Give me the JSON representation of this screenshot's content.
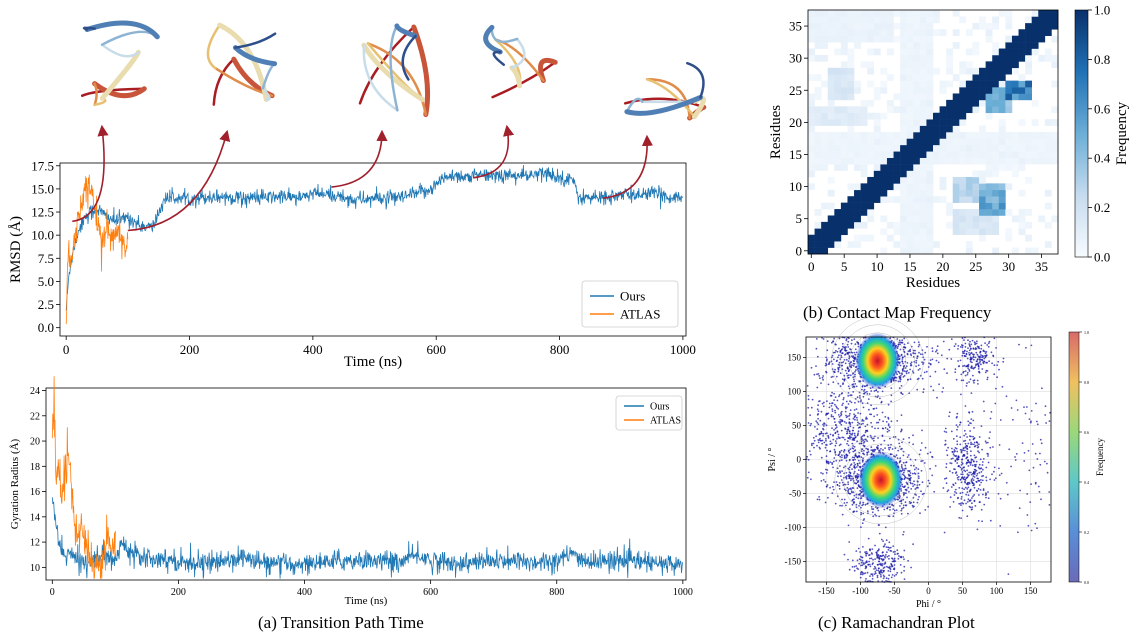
{
  "captions": {
    "a": "(a) Transition Path Time",
    "b": "(b) Contact Map Frequency",
    "c": "(c) Ramachandran Plot"
  },
  "colors": {
    "ours": "#1f77b4",
    "atlas": "#ff7f0e",
    "arrow": "#a0202c"
  },
  "structures": [
    {
      "t_ns": 10,
      "rmsd": 11.5
    },
    {
      "t_ns": 100,
      "rmsd": 10.5
    },
    {
      "t_ns": 430,
      "rmsd": 15.2
    },
    {
      "t_ns": 660,
      "rmsd": 16.2
    },
    {
      "t_ns": 870,
      "rmsd": 14.0
    }
  ],
  "chart_data": [
    {
      "id": "rmsd",
      "type": "line",
      "xlabel": "Time (ns)",
      "ylabel": "RMSD (Å)",
      "xlim": [
        -10,
        1005
      ],
      "ylim": [
        -0.9,
        17.8
      ],
      "xticks": [
        0,
        200,
        400,
        600,
        800,
        1000
      ],
      "yticks": [
        0.0,
        2.5,
        5.0,
        7.5,
        10.0,
        12.5,
        15.0,
        17.5
      ],
      "legend_position": "bottom-right",
      "series": [
        {
          "name": "Ours",
          "color": "#1f77b4",
          "x": [
            0,
            5,
            10,
            20,
            30,
            40,
            50,
            60,
            80,
            100,
            120,
            140,
            160,
            200,
            250,
            300,
            350,
            380,
            400,
            440,
            470,
            500,
            540,
            570,
            590,
            620,
            650,
            700,
            750,
            780,
            800,
            820,
            830,
            850,
            900,
            950,
            1000
          ],
          "y": [
            2.0,
            6.0,
            8.0,
            10.5,
            12.0,
            12.5,
            12.8,
            12.3,
            11.5,
            12.0,
            11.0,
            10.8,
            14.0,
            14.0,
            14.2,
            14.0,
            14.2,
            14.0,
            14.5,
            14.2,
            13.8,
            14.0,
            14.0,
            14.5,
            15.0,
            16.5,
            16.3,
            16.5,
            16.4,
            16.7,
            16.2,
            16.2,
            14.2,
            14.0,
            14.3,
            14.5,
            14.0
          ],
          "noise": 0.45
        },
        {
          "name": "ATLAS",
          "color": "#ff7f0e",
          "x": [
            0,
            3,
            6,
            10,
            15,
            20,
            25,
            30,
            35,
            40,
            45,
            50,
            55,
            60,
            65,
            70,
            75,
            80,
            85,
            90,
            95,
            100
          ],
          "y": [
            0.5,
            8.5,
            7.0,
            8.0,
            10.5,
            12.0,
            13.5,
            15.0,
            15.5,
            14.5,
            13.5,
            12.0,
            10.5,
            9.0,
            11.0,
            10.0,
            9.5,
            10.0,
            11.0,
            9.0,
            8.0,
            9.0
          ],
          "noise": 0.9
        }
      ]
    },
    {
      "id": "gyration",
      "type": "line",
      "xlabel": "Time (ns)",
      "ylabel": "Gyration Radius (Å)",
      "xlim": [
        -10,
        1005
      ],
      "ylim": [
        9.0,
        24.2
      ],
      "xticks": [
        0,
        200,
        400,
        600,
        800,
        1000
      ],
      "yticks": [
        10,
        12,
        14,
        16,
        18,
        20,
        22,
        24
      ],
      "legend_position": "top-right",
      "series": [
        {
          "name": "Ours",
          "color": "#1f77b4",
          "x": [
            0,
            5,
            10,
            20,
            30,
            40,
            60,
            80,
            100,
            110,
            120,
            140,
            160,
            200,
            250,
            300,
            350,
            400,
            450,
            500,
            550,
            580,
            600,
            650,
            700,
            750,
            800,
            830,
            850,
            900,
            950,
            1000
          ],
          "y": [
            16.0,
            13.5,
            12.0,
            11.0,
            11.0,
            10.5,
            10.5,
            11.0,
            10.5,
            12.0,
            11.5,
            11.0,
            10.8,
            10.5,
            10.3,
            10.8,
            10.2,
            10.3,
            10.5,
            10.6,
            10.4,
            11.0,
            10.5,
            10.3,
            10.5,
            10.4,
            10.6,
            11.0,
            10.4,
            10.6,
            10.3,
            10.2
          ],
          "noise": 0.45
        },
        {
          "name": "ATLAS",
          "color": "#ff7f0e",
          "x": [
            0,
            3,
            6,
            10,
            15,
            20,
            25,
            30,
            35,
            40,
            45,
            50,
            55,
            60,
            65,
            70,
            75,
            80,
            85,
            90,
            95,
            100
          ],
          "y": [
            20.5,
            23.5,
            17.0,
            18.5,
            16.0,
            17.5,
            19.5,
            16.5,
            13.5,
            12.5,
            13.0,
            12.0,
            11.5,
            11.0,
            10.5,
            10.5,
            9.8,
            10.5,
            12.5,
            12.0,
            11.5,
            12.5
          ],
          "noise": 0.9
        }
      ]
    },
    {
      "id": "contact-map",
      "type": "heatmap",
      "xlabel": "Residues",
      "ylabel": "Residues",
      "colorbar_label": "Frequency",
      "n": 38,
      "xticks": [
        0,
        5,
        10,
        15,
        20,
        25,
        30,
        35
      ],
      "yticks": [
        0,
        5,
        10,
        15,
        20,
        25,
        30,
        35
      ],
      "cbar_ticks": [
        "0.0",
        "0.2",
        "0.4",
        "0.6",
        "0.8",
        "1.0"
      ],
      "vmin": 0,
      "vmax": 1,
      "diagonal_band_half_width": 2,
      "blocks": [
        {
          "i": [
            24,
            26
          ],
          "j": [
            30,
            33
          ],
          "v": 0.85
        },
        {
          "i": [
            22,
            25
          ],
          "j": [
            27,
            30
          ],
          "v": 0.55
        },
        {
          "i": [
            6,
            10
          ],
          "j": [
            26,
            29
          ],
          "v": 0.65
        },
        {
          "i": [
            8,
            11
          ],
          "j": [
            22,
            25
          ],
          "v": 0.35
        },
        {
          "i": [
            20,
            22
          ],
          "j": [
            0,
            8
          ],
          "v": 0.15
        },
        {
          "i": [
            3,
            6
          ],
          "j": [
            22,
            28
          ],
          "v": 0.2
        },
        {
          "i": [
            24,
            28
          ],
          "j": [
            3,
            6
          ],
          "v": 0.2
        },
        {
          "i": [
            14,
            18
          ],
          "j": [
            0,
            37
          ],
          "v": 0.06
        },
        {
          "i": [
            0,
            37
          ],
          "j": [
            14,
            18
          ],
          "v": 0.06
        },
        {
          "i": [
            33,
            37
          ],
          "j": [
            0,
            12
          ],
          "v": 0.08
        }
      ]
    },
    {
      "id": "ramachandran",
      "type": "scatter",
      "xlabel": "Phi / °",
      "ylabel": "Psi / °",
      "colorbar_label": "Frequency",
      "xlim": [
        -180,
        180
      ],
      "ylim": [
        -180,
        180
      ],
      "xticks": [
        -150,
        -100,
        -50,
        0,
        50,
        100,
        150
      ],
      "yticks": [
        -150,
        -100,
        -50,
        0,
        50,
        100,
        150
      ],
      "cbar_ticks": [
        "0.0",
        "0.2",
        "0.4",
        "0.6",
        "0.8",
        "1.0"
      ],
      "clusters": [
        {
          "phi": -75,
          "psi": 145,
          "sphi": 35,
          "spsi": 22,
          "n": 900,
          "peak": true
        },
        {
          "phi": -70,
          "psi": -30,
          "sphi": 30,
          "spsi": 25,
          "n": 900,
          "peak": true
        },
        {
          "phi": -120,
          "psi": 40,
          "sphi": 35,
          "spsi": 40,
          "n": 550,
          "peak": false
        },
        {
          "phi": 60,
          "psi": -10,
          "sphi": 16,
          "spsi": 35,
          "n": 380,
          "peak": false
        },
        {
          "phi": 65,
          "psi": 150,
          "sphi": 16,
          "spsi": 18,
          "n": 220,
          "peak": false
        },
        {
          "phi": -75,
          "psi": -155,
          "sphi": 20,
          "spsi": 20,
          "n": 280,
          "peak": false
        },
        {
          "phi": 150,
          "psi": 30,
          "sphi": 25,
          "spsi": 80,
          "n": 90,
          "peak": false
        }
      ]
    }
  ]
}
